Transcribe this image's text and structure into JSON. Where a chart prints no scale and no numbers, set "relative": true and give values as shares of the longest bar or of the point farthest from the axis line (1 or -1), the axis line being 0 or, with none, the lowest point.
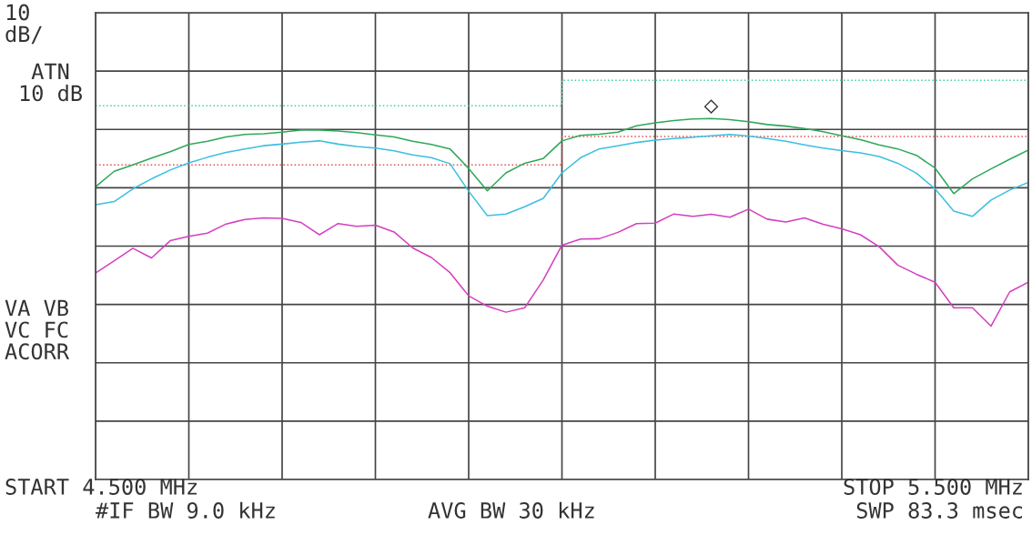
{
  "chart_data": {
    "type": "line",
    "relative": true,
    "categories": [
      null,
      null,
      null,
      null,
      null,
      null,
      null,
      null,
      null,
      null,
      null,
      null,
      null,
      null,
      null,
      null,
      null,
      null,
      null,
      null,
      null,
      null,
      null,
      null,
      null,
      null,
      null,
      null,
      null,
      null,
      null,
      null,
      null,
      null,
      null,
      null,
      null,
      null,
      null,
      null,
      null,
      null,
      null,
      null,
      null,
      null,
      null,
      null,
      null,
      null,
      null
    ],
    "grid": true,
    "line_style": "solid",
    "marker": "none",
    "annotations": [
      "10\ndB/",
      " ATN\n10 dB",
      "VA VB\nVC FC\nACORR",
      "START 4.500 MHz",
      "#IF BW 9.0 kHz",
      "AVG BW 30 kHz",
      "STOP 5.500 MHz",
      "SWP 83.3 msec"
    ],
    "series": [
      {
        "color": "#2fa85a",
        "values": [
          0.733,
          0.772,
          0.788,
          0.805,
          0.821,
          0.839,
          0.847,
          0.858,
          0.864,
          0.866,
          0.87,
          0.875,
          0.875,
          0.873,
          0.869,
          0.863,
          0.858,
          0.847,
          0.839,
          0.828,
          0.779,
          0.723,
          0.768,
          0.792,
          0.804,
          0.848,
          0.862,
          0.865,
          0.87,
          0.886,
          0.893,
          0.899,
          0.903,
          0.904,
          0.901,
          0.896,
          0.889,
          0.885,
          0.879,
          0.871,
          0.861,
          0.851,
          0.838,
          0.828,
          0.812,
          0.78,
          0.716,
          0.753,
          0.778,
          0.802,
          0.825
        ]
      },
      {
        "color": "#3cbfe0",
        "values": [
          0.688,
          0.696,
          0.728,
          0.753,
          0.775,
          0.793,
          0.807,
          0.819,
          0.828,
          0.836,
          0.84,
          0.845,
          0.848,
          0.84,
          0.834,
          0.83,
          0.823,
          0.813,
          0.806,
          0.791,
          0.722,
          0.661,
          0.665,
          0.683,
          0.704,
          0.768,
          0.806,
          0.828,
          0.836,
          0.844,
          0.85,
          0.854,
          0.857,
          0.861,
          0.864,
          0.86,
          0.854,
          0.847,
          0.838,
          0.83,
          0.824,
          0.818,
          0.809,
          0.792,
          0.767,
          0.728,
          0.672,
          0.659,
          0.7,
          0.725,
          0.744
        ]
      },
      {
        "color": "#d43fc0",
        "values": [
          0.517,
          0.548,
          0.579,
          0.555,
          0.598,
          0.609,
          0.617,
          0.64,
          0.651,
          0.655,
          0.654,
          0.644,
          0.613,
          0.641,
          0.634,
          0.637,
          0.62,
          0.58,
          0.556,
          0.518,
          0.46,
          0.434,
          0.419,
          0.43,
          0.5,
          0.587,
          0.602,
          0.603,
          0.619,
          0.641,
          0.642,
          0.665,
          0.659,
          0.664,
          0.657,
          0.677,
          0.652,
          0.645,
          0.655,
          0.639,
          0.628,
          0.613,
          0.583,
          0.537,
          0.514,
          0.494,
          0.43,
          0.43,
          0.384,
          0.47,
          0.494
        ]
      },
      {
        "type": "step",
        "color": "#40d0a0",
        "line_style": "dotted",
        "values": [
          0.936,
          0.936,
          0.936,
          0.936,
          0.936,
          0.936,
          0.936,
          0.936,
          0.936,
          0.936,
          0.936,
          0.936,
          0.936,
          0.936,
          0.936,
          0.936,
          0.936,
          0.936,
          0.936,
          0.936,
          0.936,
          0.936,
          0.936,
          0.936,
          0.936,
          0.936,
          1.0,
          1.0,
          1.0,
          1.0,
          1.0,
          1.0,
          1.0,
          1.0,
          1.0,
          1.0,
          1.0,
          1.0,
          1.0,
          1.0,
          1.0,
          1.0,
          1.0,
          1.0,
          1.0,
          1.0,
          1.0,
          1.0,
          1.0,
          1.0,
          1.0
        ]
      },
      {
        "type": "step",
        "color": "#e05050",
        "line_style": "dotted",
        "values": [
          0.788,
          0.788,
          0.788,
          0.788,
          0.788,
          0.788,
          0.788,
          0.788,
          0.788,
          0.788,
          0.788,
          0.788,
          0.788,
          0.788,
          0.788,
          0.788,
          0.788,
          0.788,
          0.788,
          0.788,
          0.788,
          0.788,
          0.788,
          0.788,
          0.788,
          0.788,
          0.859,
          0.859,
          0.859,
          0.859,
          0.859,
          0.859,
          0.859,
          0.859,
          0.859,
          0.859,
          0.859,
          0.859,
          0.859,
          0.859,
          0.859,
          0.859,
          0.859,
          0.859,
          0.859,
          0.859,
          0.859,
          0.859,
          0.859,
          0.859,
          0.859
        ]
      }
    ]
  }
}
